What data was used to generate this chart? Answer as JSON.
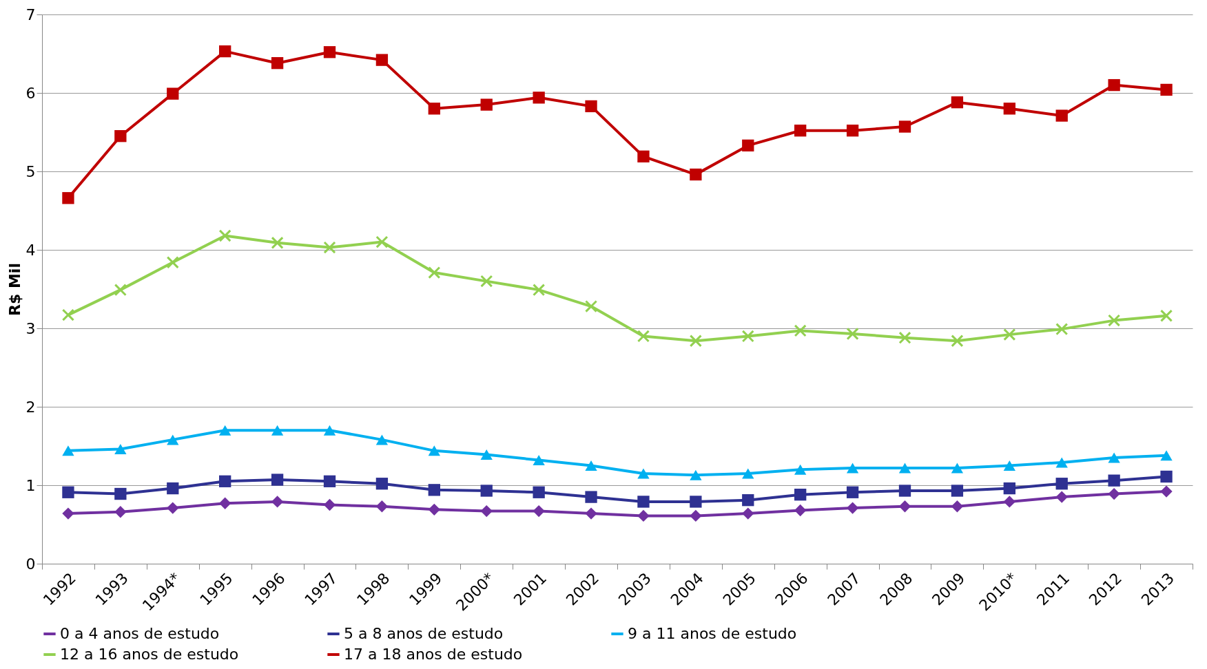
{
  "chart_data": {
    "type": "line",
    "ylabel": "R$ Mil",
    "ylim": [
      0,
      7
    ],
    "yticks": [
      0,
      1,
      2,
      3,
      4,
      5,
      6,
      7
    ],
    "grid": "y",
    "legend": "bottom",
    "categories": [
      "1992",
      "1993",
      "1994*",
      "1995",
      "1996",
      "1997",
      "1998",
      "1999",
      "2000*",
      "2001",
      "2002",
      "2003",
      "2004",
      "2005",
      "2006",
      "2007",
      "2008",
      "2009",
      "2010*",
      "2011",
      "2012",
      "2013"
    ],
    "series": [
      {
        "name": "0 a 4 anos de estudo",
        "color": "#7030a0",
        "marker": "diamond",
        "values": [
          0.64,
          0.66,
          0.71,
          0.77,
          0.79,
          0.75,
          0.73,
          0.69,
          0.67,
          0.67,
          0.64,
          0.61,
          0.61,
          0.64,
          0.68,
          0.71,
          0.73,
          0.73,
          0.79,
          0.85,
          0.89,
          0.92
        ]
      },
      {
        "name": "5 a 8 anos de estudo",
        "color": "#2e3192",
        "marker": "square",
        "values": [
          0.91,
          0.89,
          0.96,
          1.05,
          1.07,
          1.05,
          1.02,
          0.94,
          0.93,
          0.91,
          0.85,
          0.79,
          0.79,
          0.81,
          0.88,
          0.91,
          0.93,
          0.93,
          0.96,
          1.02,
          1.06,
          1.11
        ]
      },
      {
        "name": "9 a 11 anos de estudo",
        "color": "#00b0f0",
        "marker": "triangle",
        "values": [
          1.44,
          1.46,
          1.58,
          1.7,
          1.7,
          1.7,
          1.58,
          1.44,
          1.39,
          1.32,
          1.25,
          1.15,
          1.13,
          1.15,
          1.2,
          1.22,
          1.22,
          1.22,
          1.25,
          1.29,
          1.35,
          1.38
        ]
      },
      {
        "name": "12 a 16 anos de estudo",
        "color": "#92d050",
        "marker": "cross",
        "values": [
          3.17,
          3.49,
          3.84,
          4.18,
          4.09,
          4.03,
          4.1,
          3.71,
          3.6,
          3.49,
          3.28,
          2.9,
          2.84,
          2.9,
          2.97,
          2.93,
          2.88,
          2.84,
          2.92,
          2.99,
          3.1,
          3.16
        ]
      },
      {
        "name": "17 a 18 anos de estudo",
        "color": "#c00000",
        "marker": "square",
        "values": [
          4.66,
          5.45,
          5.99,
          6.53,
          6.38,
          6.52,
          6.42,
          5.8,
          5.85,
          5.94,
          5.83,
          5.19,
          4.96,
          5.33,
          5.52,
          5.52,
          5.57,
          5.88,
          5.8,
          5.71,
          6.1,
          6.04
        ]
      }
    ]
  }
}
